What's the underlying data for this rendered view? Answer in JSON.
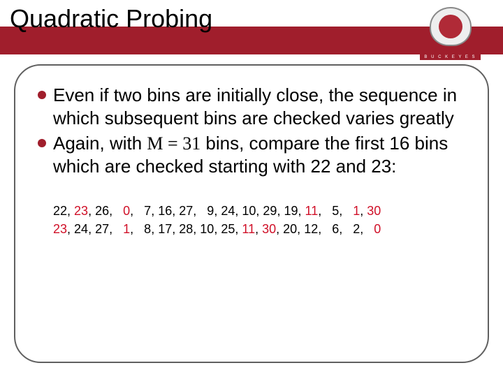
{
  "title": "Quadratic Probing",
  "logo": {
    "line1": "OHIO STATE",
    "line2": "B U C K E Y E S"
  },
  "colors": {
    "banner": "#a01e2c",
    "red_text": "#d01028",
    "black_text": "#000000",
    "border": "#606060",
    "background": "#ffffff"
  },
  "bullets": [
    {
      "parts": [
        {
          "text": "Even if two bins are initially close, the sequence in which subsequent bins are checked varies greatly",
          "serif": false
        }
      ]
    },
    {
      "parts": [
        {
          "text": "Again, with ",
          "serif": false
        },
        {
          "text": "M = 31",
          "serif": true
        },
        {
          "text": " bins, compare the first 16 bins which are checked starting with 22 and 23:",
          "serif": false
        }
      ]
    }
  ],
  "sequences": [
    [
      {
        "v": "22",
        "red": false
      },
      {
        "v": "23",
        "red": true
      },
      {
        "v": "26",
        "red": false
      },
      {
        "v": "0",
        "red": true
      },
      {
        "v": "7",
        "red": false
      },
      {
        "v": "16",
        "red": false
      },
      {
        "v": "27",
        "red": false
      },
      {
        "v": "9",
        "red": false
      },
      {
        "v": "24",
        "red": false
      },
      {
        "v": "10",
        "red": false
      },
      {
        "v": "29",
        "red": false
      },
      {
        "v": "19",
        "red": false
      },
      {
        "v": "11",
        "red": true
      },
      {
        "v": "5",
        "red": false
      },
      {
        "v": "1",
        "red": true
      },
      {
        "v": "30",
        "red": true
      }
    ],
    [
      {
        "v": "23",
        "red": true
      },
      {
        "v": "24",
        "red": false
      },
      {
        "v": "27",
        "red": false
      },
      {
        "v": "1",
        "red": true
      },
      {
        "v": "8",
        "red": false
      },
      {
        "v": "17",
        "red": false
      },
      {
        "v": "28",
        "red": false
      },
      {
        "v": "10",
        "red": false
      },
      {
        "v": "25",
        "red": false
      },
      {
        "v": "11",
        "red": true
      },
      {
        "v": "30",
        "red": true
      },
      {
        "v": "20",
        "red": false
      },
      {
        "v": "12",
        "red": false
      },
      {
        "v": "6",
        "red": false
      },
      {
        "v": "2",
        "red": false
      },
      {
        "v": "0",
        "red": true
      }
    ]
  ]
}
